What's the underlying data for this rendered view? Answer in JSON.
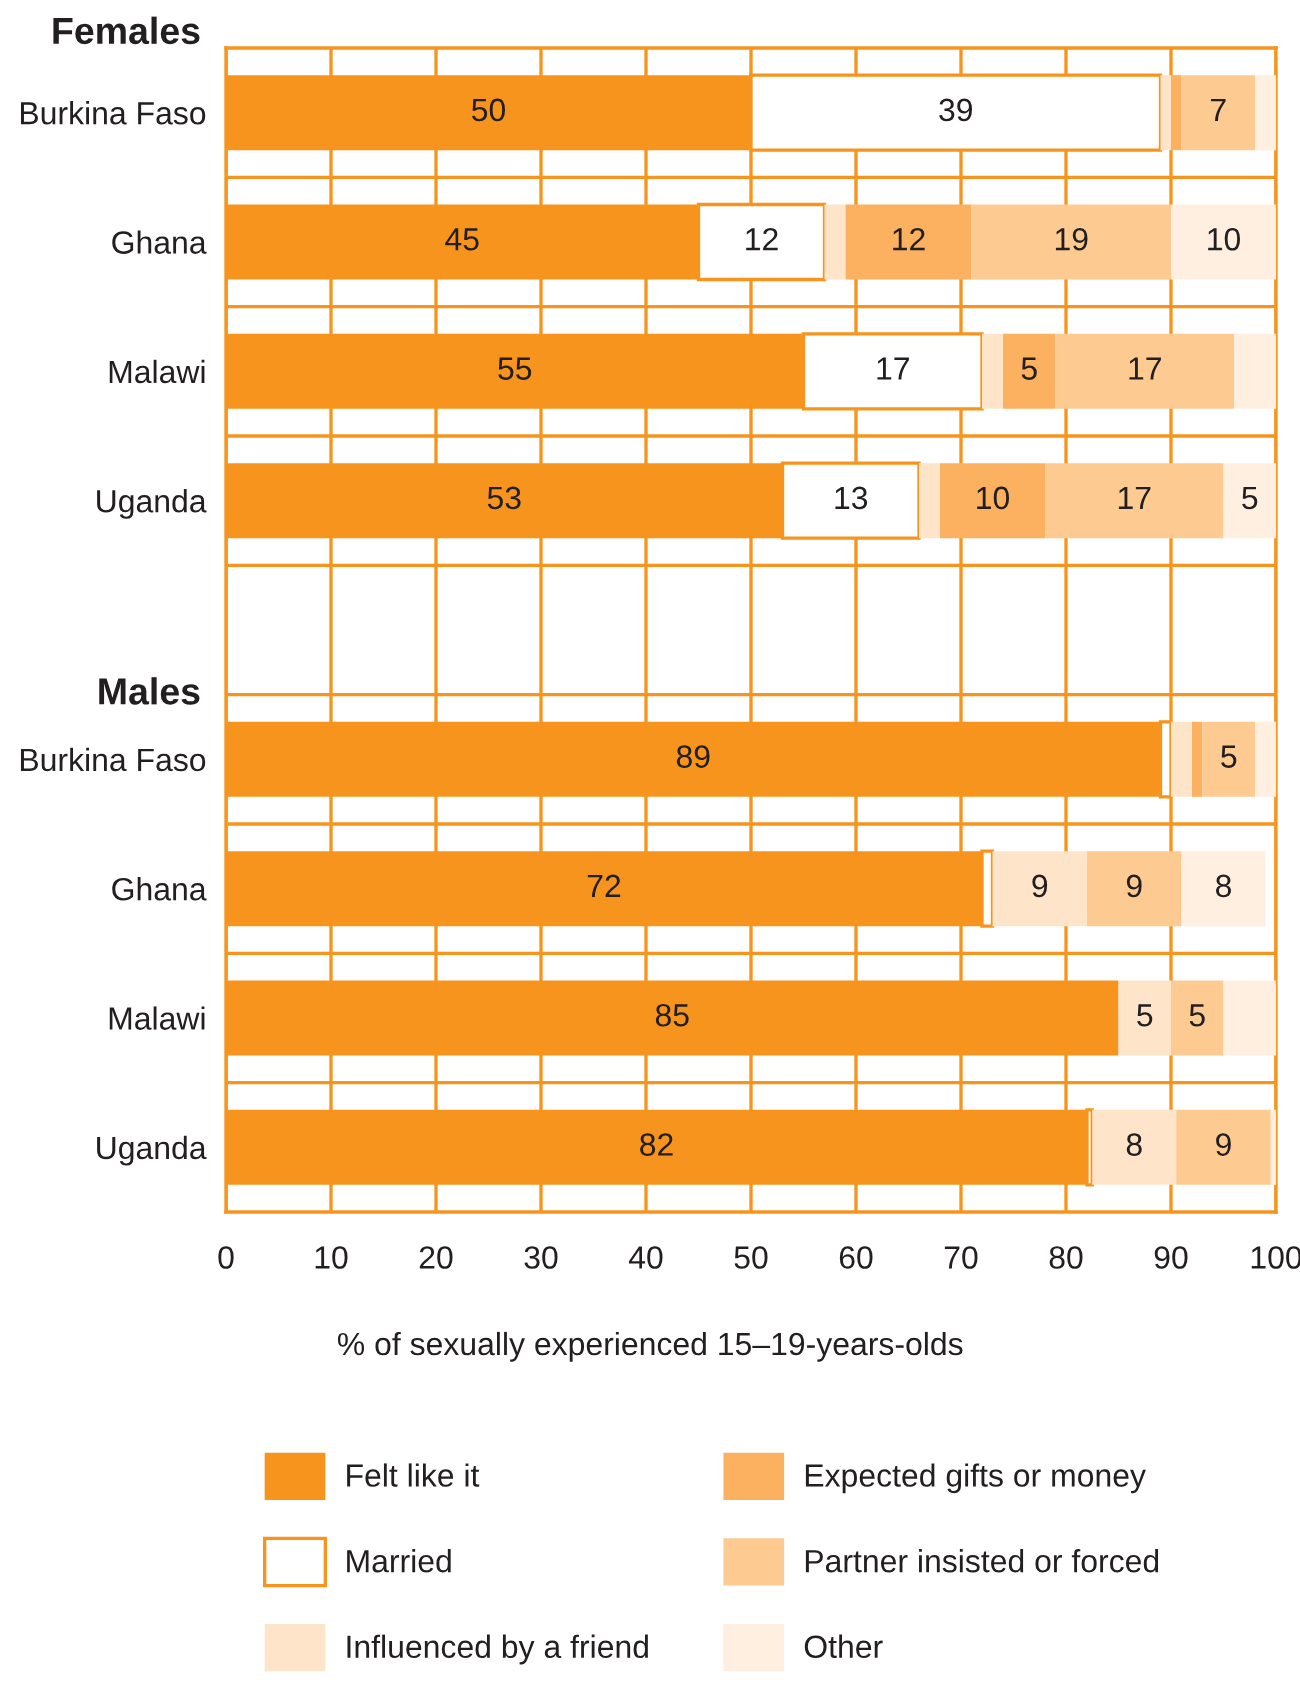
{
  "chart_data": {
    "type": "bar",
    "orientation": "horizontal",
    "stacked": true,
    "categories": [
      "Burkina Faso",
      "Ghana",
      "Malawi",
      "Uganda",
      null,
      "Burkina Faso",
      "Ghana",
      "Malawi",
      "Uganda"
    ],
    "series": [
      {
        "name": "Felt like it",
        "color": "#f7941d",
        "values": [
          50,
          45,
          55,
          53,
          null,
          89,
          72,
          85,
          82
        ],
        "value_labels": [
          "50",
          "45",
          "55",
          "53",
          null,
          "89",
          "72",
          "85",
          "82"
        ]
      },
      {
        "name": "Married",
        "color": "#ffffff",
        "values": [
          39,
          12,
          17,
          13,
          null,
          1,
          1,
          null,
          0.5
        ],
        "value_labels": [
          "39",
          "12",
          "17",
          "13",
          null,
          null,
          null,
          null,
          null
        ]
      },
      {
        "name": "Influenced by a friend",
        "color": "#fee4c8",
        "values": [
          1,
          2,
          2,
          2,
          null,
          2,
          9,
          5,
          8
        ],
        "value_labels": [
          null,
          null,
          null,
          null,
          null,
          null,
          "9",
          "5",
          "8"
        ]
      },
      {
        "name": "Expected gifts or money",
        "color": "#fbb160",
        "values": [
          1,
          12,
          5,
          10,
          null,
          1,
          null,
          null,
          null
        ],
        "value_labels": [
          null,
          "12",
          "5",
          "10",
          null,
          null,
          null,
          null,
          null
        ]
      },
      {
        "name": "Partner insisted or forced",
        "color": "#fdca92",
        "values": [
          7,
          19,
          17,
          17,
          null,
          5,
          9,
          5,
          9
        ],
        "value_labels": [
          "7",
          "19",
          "17",
          "17",
          null,
          "5",
          "9",
          "5",
          "9"
        ]
      },
      {
        "name": "Other",
        "color": "#feefe0",
        "values": [
          2,
          10,
          4,
          5,
          null,
          2,
          8,
          5,
          0.5
        ],
        "value_labels": [
          null,
          "10",
          null,
          "5",
          null,
          null,
          "8",
          null,
          null
        ]
      }
    ],
    "xlim": [
      0,
      100
    ],
    "xticks": [
      0,
      10,
      20,
      30,
      40,
      50,
      60,
      70,
      80,
      90,
      100
    ],
    "xlabel": "% of sexually experienced 15–19-years-olds",
    "annotations": [
      "Females",
      "Males"
    ],
    "legend": "bottom",
    "grid": true
  }
}
